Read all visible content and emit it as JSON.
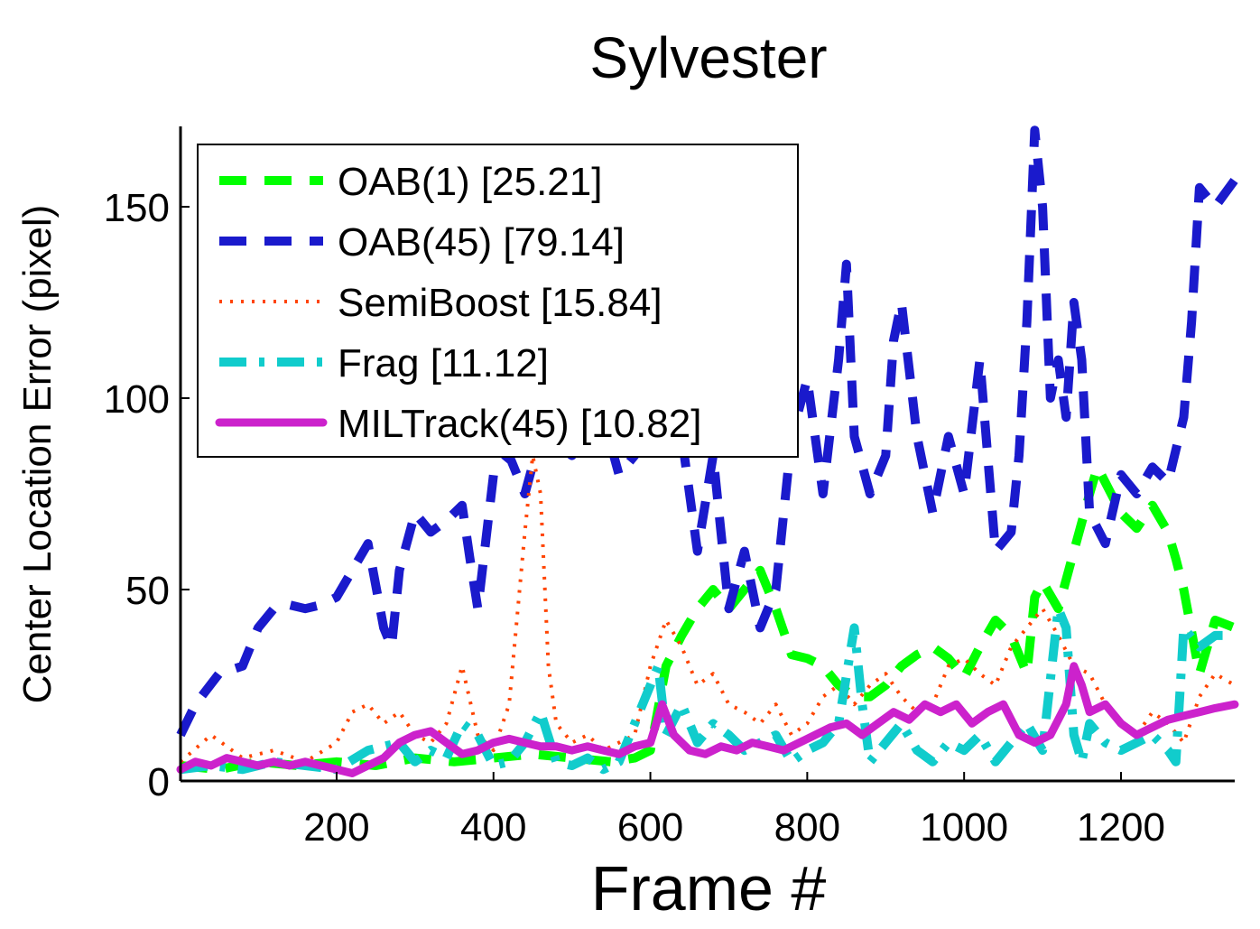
{
  "chart_data": {
    "type": "line",
    "title": "Sylvester",
    "xlabel": "Frame #",
    "ylabel": "Center Location Error (pixel)",
    "xlim": [
      1,
      1345
    ],
    "ylim": [
      0,
      171
    ],
    "xticks": [
      200,
      400,
      600,
      800,
      1000,
      1200
    ],
    "yticks": [
      0,
      50,
      100,
      150
    ],
    "grid": false,
    "legend_position": "top-left",
    "series": [
      {
        "name": "OAB(1) [25.21]",
        "color": "#00ff00",
        "style": "dashed",
        "x": [
          1,
          50,
          100,
          150,
          200,
          250,
          300,
          350,
          400,
          450,
          500,
          550,
          580,
          600,
          620,
          640,
          660,
          680,
          700,
          720,
          740,
          760,
          780,
          800,
          820,
          840,
          860,
          880,
          900,
          920,
          940,
          960,
          980,
          1000,
          1020,
          1040,
          1060,
          1080,
          1090,
          1100,
          1120,
          1140,
          1160,
          1170,
          1180,
          1200,
          1220,
          1240,
          1260,
          1270,
          1280,
          1300,
          1320,
          1345
        ],
        "values": [
          4,
          3,
          5,
          4,
          5,
          4,
          6,
          5,
          6,
          7,
          6,
          5,
          6,
          8,
          30,
          38,
          45,
          50,
          45,
          50,
          55,
          45,
          33,
          32,
          30,
          25,
          22,
          22,
          25,
          30,
          33,
          35,
          32,
          27,
          35,
          42,
          38,
          28,
          48,
          52,
          45,
          60,
          75,
          82,
          78,
          70,
          66,
          72,
          65,
          58,
          50,
          28,
          42,
          40
        ]
      },
      {
        "name": "OAB(45) [79.14]",
        "color": "#1a1acc",
        "style": "dashed",
        "x": [
          1,
          20,
          50,
          80,
          100,
          120,
          140,
          160,
          180,
          200,
          220,
          240,
          260,
          270,
          280,
          300,
          320,
          340,
          360,
          370,
          380,
          400,
          420,
          440,
          460,
          480,
          500,
          520,
          540,
          560,
          580,
          600,
          610,
          620,
          640,
          660,
          680,
          700,
          720,
          740,
          760,
          780,
          800,
          820,
          840,
          850,
          860,
          880,
          900,
          910,
          920,
          940,
          960,
          980,
          1000,
          1020,
          1040,
          1060,
          1070,
          1080,
          1090,
          1100,
          1110,
          1120,
          1130,
          1140,
          1150,
          1160,
          1180,
          1200,
          1220,
          1240,
          1260,
          1280,
          1290,
          1300,
          1320,
          1345
        ],
        "values": [
          12,
          20,
          28,
          30,
          40,
          45,
          46,
          45,
          46,
          48,
          55,
          62,
          40,
          35,
          55,
          70,
          65,
          68,
          72,
          58,
          45,
          80,
          85,
          75,
          90,
          88,
          85,
          90,
          95,
          80,
          85,
          90,
          88,
          100,
          90,
          60,
          85,
          45,
          60,
          40,
          50,
          90,
          105,
          75,
          110,
          135,
          90,
          75,
          85,
          115,
          125,
          90,
          70,
          90,
          75,
          110,
          60,
          65,
          85,
          120,
          170,
          150,
          100,
          110,
          95,
          125,
          110,
          70,
          62,
          80,
          75,
          82,
          78,
          95,
          120,
          155,
          150,
          157
        ]
      },
      {
        "name": "SemiBoost [15.84]",
        "color": "#ff4400",
        "style": "dotted",
        "x": [
          1,
          40,
          80,
          120,
          160,
          200,
          220,
          240,
          260,
          280,
          300,
          320,
          340,
          360,
          380,
          400,
          420,
          440,
          450,
          460,
          470,
          480,
          500,
          520,
          540,
          560,
          580,
          600,
          620,
          640,
          660,
          680,
          700,
          720,
          740,
          760,
          780,
          800,
          820,
          840,
          860,
          880,
          900,
          920,
          940,
          960,
          980,
          1000,
          1020,
          1040,
          1060,
          1080,
          1100,
          1120,
          1140,
          1160,
          1180,
          1200,
          1220,
          1240,
          1260,
          1280,
          1300,
          1320,
          1345
        ],
        "values": [
          5,
          12,
          6,
          8,
          5,
          10,
          18,
          20,
          15,
          18,
          12,
          10,
          15,
          30,
          12,
          8,
          20,
          65,
          85,
          75,
          30,
          15,
          10,
          12,
          8,
          10,
          12,
          30,
          42,
          35,
          25,
          28,
          20,
          18,
          15,
          20,
          12,
          15,
          22,
          25,
          20,
          25,
          28,
          22,
          18,
          20,
          30,
          32,
          28,
          25,
          35,
          40,
          45,
          38,
          30,
          28,
          20,
          15,
          12,
          18,
          15,
          10,
          22,
          28,
          25
        ]
      },
      {
        "name": "Frag [11.12]",
        "color": "#11cccc",
        "style": "dashdot",
        "x": [
          1,
          40,
          80,
          120,
          160,
          200,
          240,
          280,
          300,
          320,
          340,
          360,
          380,
          400,
          420,
          440,
          460,
          480,
          500,
          520,
          540,
          560,
          580,
          600,
          610,
          620,
          640,
          660,
          680,
          700,
          720,
          740,
          760,
          780,
          800,
          820,
          840,
          860,
          870,
          880,
          900,
          920,
          940,
          960,
          980,
          1000,
          1020,
          1040,
          1060,
          1080,
          1100,
          1120,
          1130,
          1140,
          1150,
          1160,
          1180,
          1200,
          1220,
          1240,
          1260,
          1270,
          1280,
          1300,
          1320,
          1345
        ],
        "values": [
          3,
          4,
          3,
          5,
          4,
          3,
          8,
          10,
          5,
          8,
          6,
          15,
          12,
          4,
          5,
          10,
          18,
          5,
          4,
          6,
          3,
          5,
          15,
          25,
          30,
          12,
          20,
          10,
          15,
          12,
          8,
          10,
          12,
          5,
          8,
          10,
          15,
          40,
          20,
          5,
          10,
          15,
          8,
          5,
          10,
          8,
          12,
          5,
          10,
          15,
          8,
          45,
          40,
          12,
          5,
          15,
          10,
          8,
          10,
          12,
          8,
          5,
          40,
          35,
          38,
          38
        ]
      },
      {
        "name": "MILTrack(45) [10.82]",
        "color": "#cc22cc",
        "style": "solid",
        "x": [
          1,
          20,
          40,
          60,
          80,
          100,
          120,
          140,
          160,
          180,
          200,
          220,
          240,
          260,
          280,
          300,
          320,
          340,
          360,
          380,
          400,
          420,
          440,
          460,
          480,
          500,
          520,
          540,
          560,
          580,
          600,
          615,
          630,
          650,
          670,
          690,
          710,
          730,
          750,
          770,
          790,
          810,
          830,
          850,
          870,
          890,
          910,
          930,
          950,
          970,
          990,
          1010,
          1030,
          1050,
          1070,
          1090,
          1110,
          1130,
          1140,
          1150,
          1160,
          1180,
          1200,
          1220,
          1240,
          1260,
          1280,
          1300,
          1320,
          1345
        ],
        "values": [
          3,
          5,
          4,
          6,
          5,
          4,
          5,
          4,
          5,
          4,
          3,
          2,
          4,
          6,
          10,
          12,
          13,
          10,
          7,
          8,
          10,
          11,
          10,
          9,
          9,
          8,
          9,
          8,
          7,
          9,
          10,
          20,
          12,
          8,
          7,
          9,
          8,
          10,
          9,
          8,
          10,
          12,
          14,
          15,
          12,
          15,
          18,
          16,
          20,
          18,
          20,
          15,
          18,
          20,
          12,
          10,
          12,
          20,
          30,
          25,
          18,
          20,
          15,
          12,
          14,
          16,
          17,
          18,
          19,
          20
        ]
      }
    ]
  }
}
